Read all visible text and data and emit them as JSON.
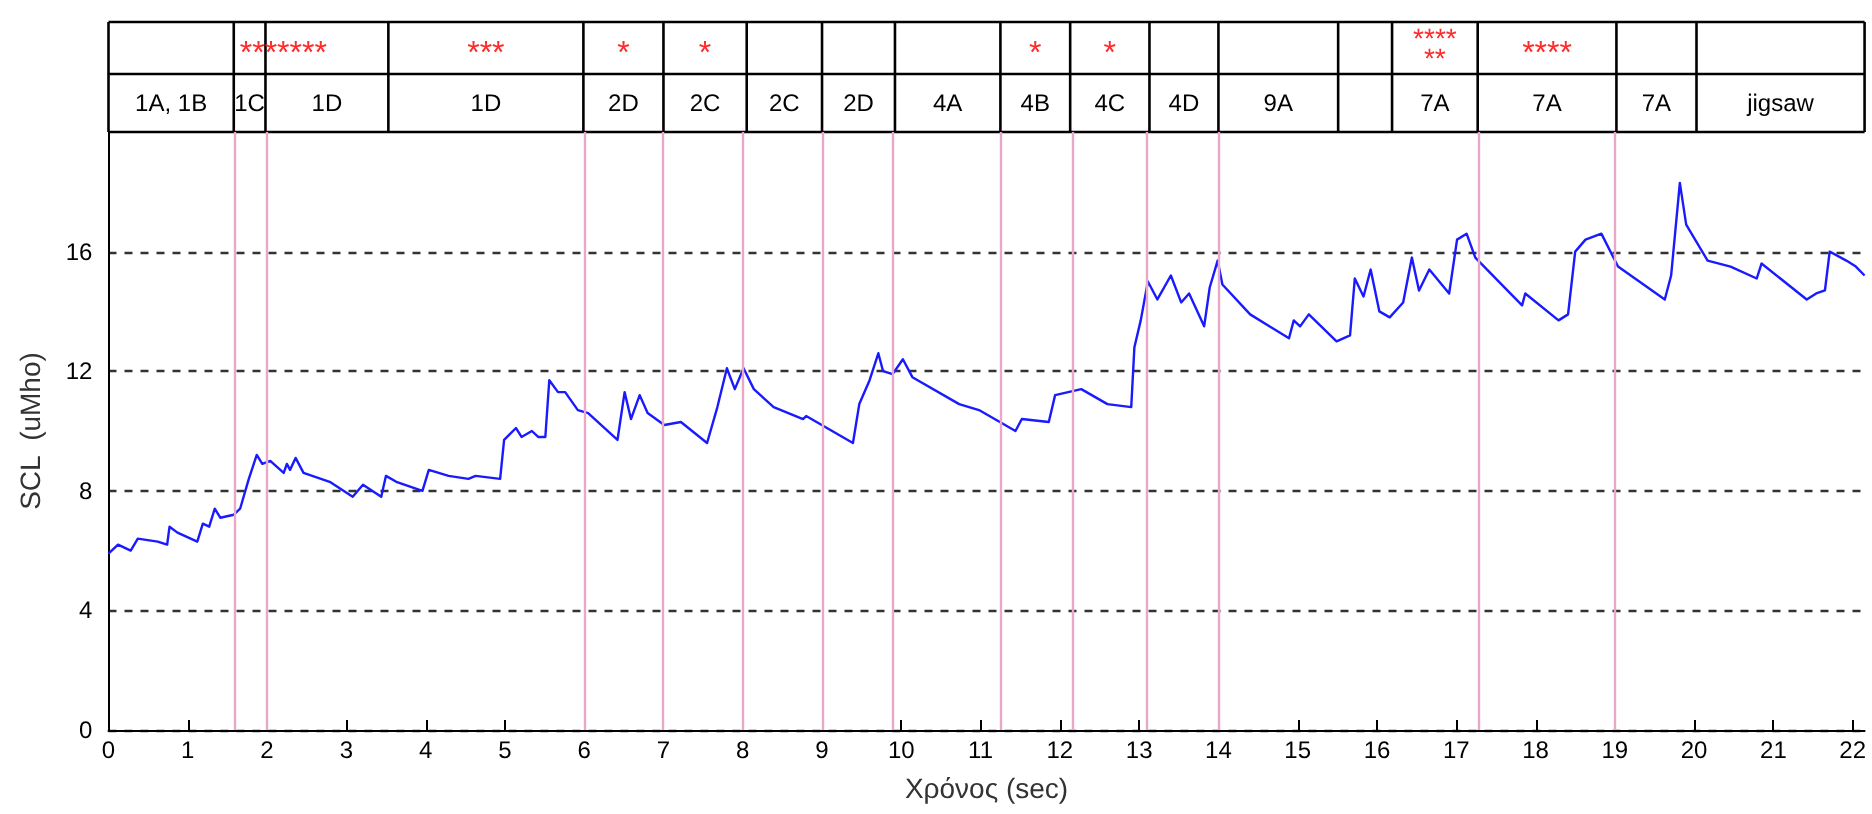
{
  "chart_data": {
    "type": "line",
    "xlabel": "Χρόνος (sec)",
    "ylabel": "SCL  (uMho)",
    "xlim": [
      0,
      22.15
    ],
    "xticks": [
      0,
      1,
      2,
      3,
      4,
      5,
      6,
      7,
      8,
      9,
      10,
      11,
      12,
      13,
      14,
      15,
      16,
      17,
      18,
      19,
      20,
      21,
      22
    ],
    "ylim": [
      0,
      20
    ],
    "yticks": [
      0,
      4,
      8,
      12,
      16
    ],
    "grid": "y",
    "series": [
      {
        "color": "#1a1aff",
        "x": [
          0,
          0.12,
          0.28,
          0.37,
          0.62,
          0.74,
          0.77,
          0.87,
          1.12,
          1.19,
          1.27,
          1.34,
          1.41,
          1.58,
          1.66,
          1.77,
          1.87,
          1.94,
          2.04,
          2.21,
          2.25,
          2.29,
          2.36,
          2.46,
          2.79,
          3.08,
          3.21,
          3.44,
          3.5,
          3.63,
          3.96,
          4.04,
          4.29,
          4.54,
          4.63,
          4.94,
          4.99,
          5.14,
          5.21,
          5.34,
          5.42,
          5.51,
          5.56,
          5.67,
          5.76,
          5.92,
          6.05,
          6.42,
          6.51,
          6.59,
          6.7,
          6.8,
          7.01,
          7.22,
          7.55,
          7.68,
          7.8,
          7.9,
          8.01,
          8.14,
          8.39,
          8.76,
          8.8,
          9.39,
          9.47,
          9.6,
          9.71,
          9.77,
          9.89,
          10.02,
          10.14,
          10.73,
          10.98,
          11.44,
          11.52,
          11.86,
          11.94,
          12.27,
          12.6,
          12.9,
          12.94,
          13.02,
          13.11,
          13.23,
          13.4,
          13.53,
          13.63,
          13.82,
          13.89,
          13.99,
          14.05,
          14.4,
          14.89,
          14.95,
          15.03,
          15.14,
          15.49,
          15.66,
          15.72,
          15.83,
          15.92,
          16.03,
          16.16,
          16.33,
          16.44,
          16.53,
          16.66,
          16.91,
          17.01,
          17.13,
          17.24,
          17.83,
          17.87,
          18.29,
          18.41,
          18.5,
          18.63,
          18.83,
          19.04,
          19.63,
          19.71,
          19.82,
          19.9,
          20.17,
          20.46,
          20.79,
          20.85,
          21.42,
          21.54,
          21.65,
          21.71,
          21.92,
          22.04,
          22.15
        ],
        "values": [
          5.9,
          6.2,
          6.0,
          6.4,
          6.3,
          6.2,
          6.8,
          6.6,
          6.3,
          6.9,
          6.8,
          7.4,
          7.1,
          7.2,
          7.4,
          8.4,
          9.2,
          8.9,
          9.0,
          8.6,
          8.9,
          8.7,
          9.1,
          8.6,
          8.3,
          7.8,
          8.2,
          7.8,
          8.5,
          8.3,
          8.0,
          8.7,
          8.5,
          8.4,
          8.5,
          8.4,
          9.7,
          10.1,
          9.8,
          10.0,
          9.8,
          9.8,
          11.7,
          11.3,
          11.3,
          10.7,
          10.6,
          9.7,
          11.3,
          10.4,
          11.2,
          10.6,
          10.2,
          10.3,
          9.6,
          10.8,
          12.1,
          11.4,
          12.1,
          11.4,
          10.8,
          10.4,
          10.5,
          9.6,
          10.9,
          11.7,
          12.6,
          12.0,
          11.9,
          12.4,
          11.8,
          10.9,
          10.7,
          10.0,
          10.4,
          10.3,
          11.2,
          11.4,
          10.9,
          10.8,
          12.8,
          13.7,
          15.0,
          14.4,
          15.2,
          14.3,
          14.6,
          13.5,
          14.8,
          15.7,
          14.9,
          13.9,
          13.1,
          13.7,
          13.5,
          13.9,
          13.0,
          13.2,
          15.1,
          14.5,
          15.4,
          14.0,
          13.8,
          14.3,
          15.8,
          14.7,
          15.4,
          14.6,
          16.4,
          16.6,
          15.8,
          14.2,
          14.6,
          13.7,
          13.9,
          16.0,
          16.4,
          16.6,
          15.5,
          14.4,
          15.2,
          18.3,
          16.9,
          15.7,
          15.5,
          15.1,
          15.6,
          14.4,
          14.6,
          14.7,
          16.0,
          15.7,
          15.5,
          15.2
        ]
      }
    ],
    "ref_lines": [
      {
        "axis": "x",
        "value": 1.6,
        "color": "#e8a8c8"
      },
      {
        "axis": "x",
        "value": 2.0,
        "color": "#e8a8c8"
      },
      {
        "axis": "x",
        "value": 6.0,
        "color": "#e8a8c8"
      },
      {
        "axis": "x",
        "value": 7.0,
        "color": "#e8a8c8"
      },
      {
        "axis": "x",
        "value": 8.0,
        "color": "#e8a8c8"
      },
      {
        "axis": "x",
        "value": 9.0,
        "color": "#e8a8c8"
      },
      {
        "axis": "x",
        "value": 9.9,
        "color": "#e8a8c8"
      },
      {
        "axis": "x",
        "value": 11.25,
        "color": "#e8a8c8"
      },
      {
        "axis": "x",
        "value": 12.15,
        "color": "#e8a8c8"
      },
      {
        "axis": "x",
        "value": 13.1,
        "color": "#e8a8c8"
      },
      {
        "axis": "x",
        "value": 14.0,
        "color": "#e8a8c8"
      },
      {
        "axis": "x",
        "value": 17.27,
        "color": "#e8a8c8"
      },
      {
        "axis": "x",
        "value": 19.0,
        "color": "#e8a8c8"
      }
    ],
    "annotations": [
      "1A, 1B",
      "1C",
      "1D",
      "1D",
      "2D",
      "2C",
      "2C",
      "2D",
      "4A",
      "4B",
      "4C",
      "4D",
      "9A",
      "7A",
      "7A",
      "7A",
      "jigsaw",
      "*******",
      "***",
      "*",
      "*",
      "*",
      "*",
      "****\n**",
      "****"
    ]
  }
}
